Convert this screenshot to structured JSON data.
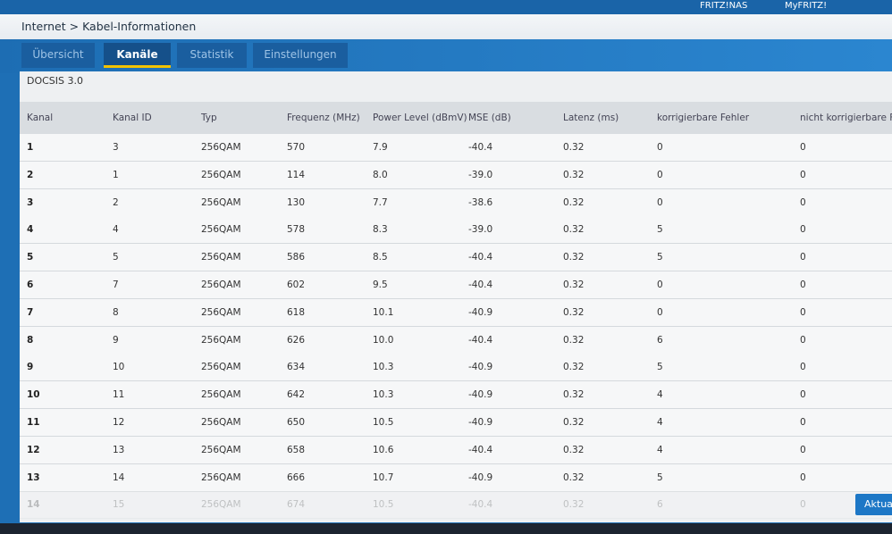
{
  "header": {
    "links": [
      "FRITZ!NAS",
      "MyFRITZ!"
    ],
    "breadcrumb": [
      "Internet",
      "Kabel-Informationen"
    ]
  },
  "tabs": [
    {
      "label": "Übersicht",
      "active": false
    },
    {
      "label": "Kanäle",
      "active": true
    },
    {
      "label": "Statistik",
      "active": false
    },
    {
      "label": "Einstellungen",
      "active": false
    }
  ],
  "section": "DOCSIS 3.0",
  "table": {
    "columns": [
      "Kanal",
      "Kanal ID",
      "Typ",
      "Frequenz (MHz)",
      "Power Level (dBmV)",
      "MSE (dB)",
      "Latenz (ms)",
      "korrigierbare Fehler",
      "nicht korrigierbare Fehl"
    ],
    "rows": [
      [
        "1",
        "3",
        "256QAM",
        "570",
        "7.9",
        "-40.4",
        "0.32",
        "0",
        "0"
      ],
      [
        "2",
        "1",
        "256QAM",
        "114",
        "8.0",
        "-39.0",
        "0.32",
        "0",
        "0"
      ],
      [
        "3",
        "2",
        "256QAM",
        "130",
        "7.7",
        "-38.6",
        "0.32",
        "0",
        "0"
      ],
      [
        "4",
        "4",
        "256QAM",
        "578",
        "8.3",
        "-39.0",
        "0.32",
        "5",
        "0"
      ],
      [
        "5",
        "5",
        "256QAM",
        "586",
        "8.5",
        "-40.4",
        "0.32",
        "5",
        "0"
      ],
      [
        "6",
        "7",
        "256QAM",
        "602",
        "9.5",
        "-40.4",
        "0.32",
        "0",
        "0"
      ],
      [
        "7",
        "8",
        "256QAM",
        "618",
        "10.1",
        "-40.9",
        "0.32",
        "0",
        "0"
      ],
      [
        "8",
        "9",
        "256QAM",
        "626",
        "10.0",
        "-40.4",
        "0.32",
        "6",
        "0"
      ],
      [
        "9",
        "10",
        "256QAM",
        "634",
        "10.3",
        "-40.9",
        "0.32",
        "5",
        "0"
      ],
      [
        "10",
        "11",
        "256QAM",
        "642",
        "10.3",
        "-40.9",
        "0.32",
        "4",
        "0"
      ],
      [
        "11",
        "12",
        "256QAM",
        "650",
        "10.5",
        "-40.9",
        "0.32",
        "4",
        "0"
      ],
      [
        "12",
        "13",
        "256QAM",
        "658",
        "10.6",
        "-40.4",
        "0.32",
        "4",
        "0"
      ],
      [
        "13",
        "14",
        "256QAM",
        "666",
        "10.7",
        "-40.9",
        "0.32",
        "5",
        "0"
      ],
      [
        "14",
        "15",
        "256QAM",
        "674",
        "10.5",
        "-40.4",
        "0.32",
        "6",
        "0"
      ]
    ]
  },
  "button": "Aktual"
}
